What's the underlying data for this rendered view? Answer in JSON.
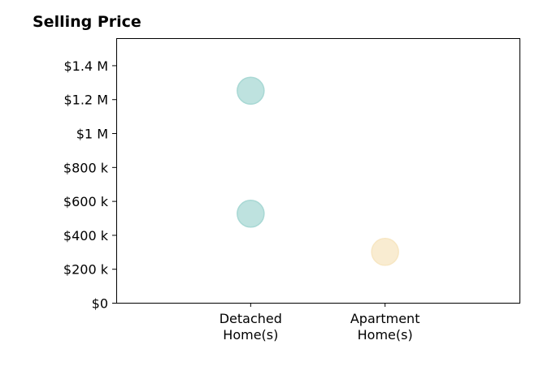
{
  "chart_data": {
    "type": "scatter",
    "title": "Selling Price",
    "xlabel": "",
    "ylabel": "",
    "categories": [
      [
        "Detached",
        "Home(s)"
      ],
      [
        "Apartment",
        "Home(s)"
      ]
    ],
    "y_ticks": [
      {
        "value": 0,
        "label": "$0"
      },
      {
        "value": 200000,
        "label": "$200 k"
      },
      {
        "value": 400000,
        "label": "$400 k"
      },
      {
        "value": 600000,
        "label": "$600 k"
      },
      {
        "value": 800000,
        "label": "$800 k"
      },
      {
        "value": 1000000,
        "label": "$1 M"
      },
      {
        "value": 1200000,
        "label": "$1.2 M"
      },
      {
        "value": 1400000,
        "label": "$1.4 M"
      }
    ],
    "ylim": [
      0,
      1560000
    ],
    "points": [
      {
        "category": 0,
        "y": 1250000,
        "color": "#a8d8d4"
      },
      {
        "category": 0,
        "y": 525000,
        "color": "#a8d8d4"
      },
      {
        "category": 1,
        "y": 300000,
        "color": "#f7e6c2"
      }
    ],
    "grid": false,
    "legend": "none"
  }
}
